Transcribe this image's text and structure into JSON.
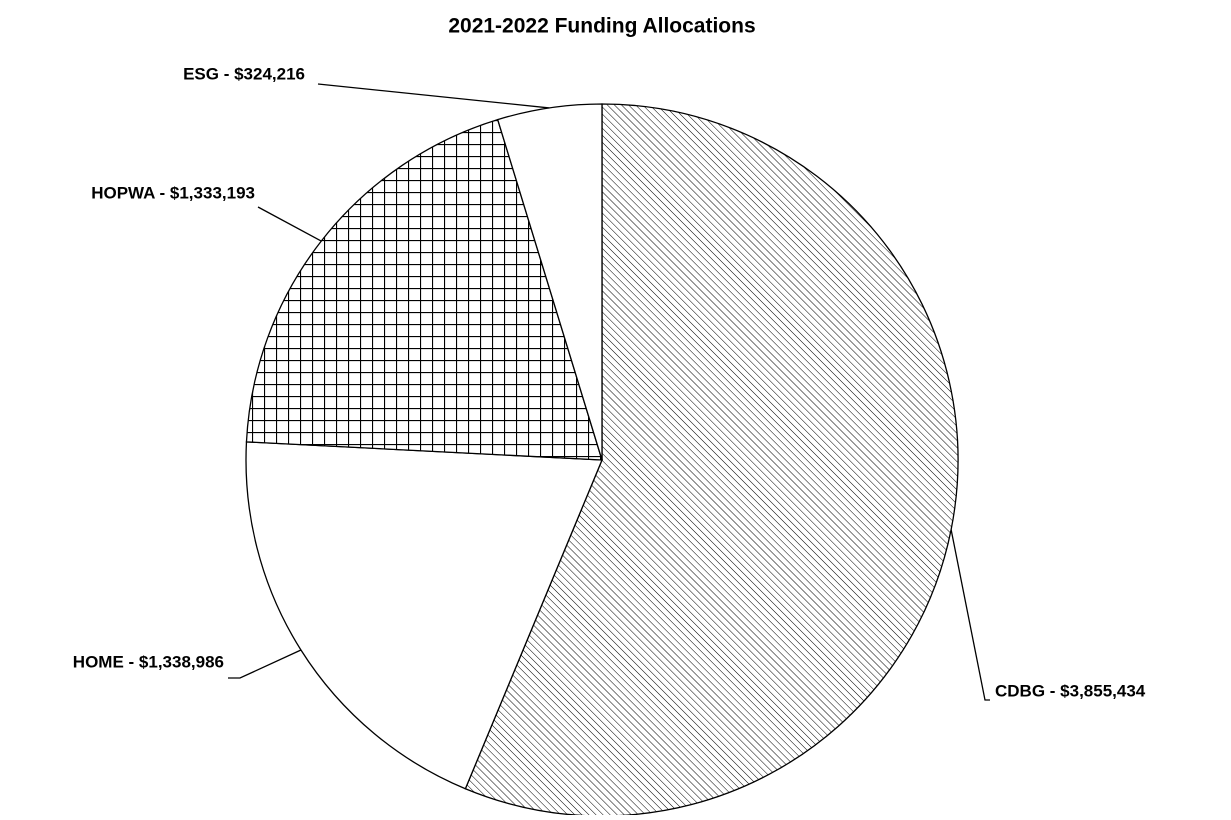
{
  "chart_data": {
    "type": "pie",
    "title": "2021-2022 Funding Allocations",
    "values": [
      3855434,
      1338986,
      1333193,
      324216
    ],
    "value_labels": [
      "CDBG - $3,855,434",
      "HOME - $1,338,986",
      "HOPWA - $1,333,193",
      "ESG - $324,216"
    ],
    "patterns": [
      "diagonal",
      "none",
      "grid",
      "none"
    ],
    "start": "top",
    "direction": "clockwise"
  }
}
